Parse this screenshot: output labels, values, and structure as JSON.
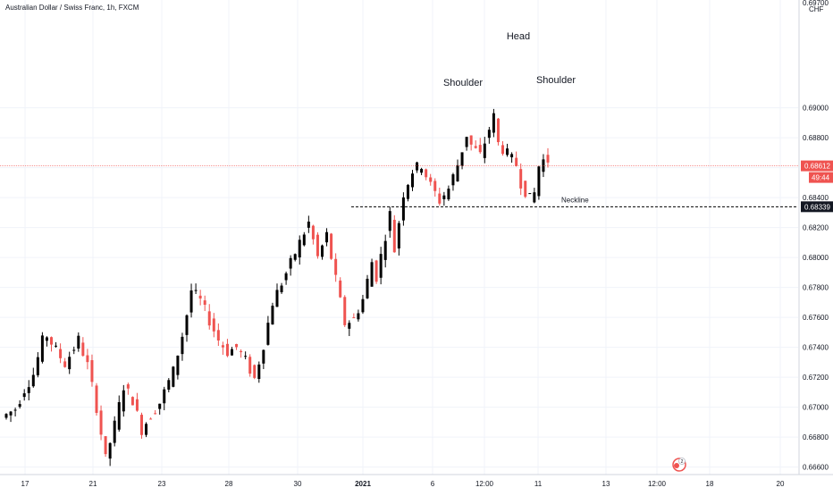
{
  "header": {
    "symbol_title": "Australian Dollar / Swiss Franc, 1h, FXCM"
  },
  "chart_data": {
    "type": "candlestick",
    "title": "Australian Dollar / Swiss Franc, 1h, FXCM",
    "currency_label": "CHF",
    "ylim": [
      0.6655,
      0.6972
    ],
    "y_ticks": [
      "0.66600",
      "0.66800",
      "0.67000",
      "0.67200",
      "0.67400",
      "0.67600",
      "0.67800",
      "0.68000",
      "0.68200",
      "0.68400",
      "0.68600",
      "0.68800",
      "0.69000"
    ],
    "x_ticks": [
      "17",
      "21",
      "23",
      "28",
      "30",
      "2021",
      "6",
      "12:00",
      "11",
      "13",
      "12:00",
      "18",
      "20"
    ],
    "colors": {
      "up": "#000000",
      "down": "#ef5350",
      "grid": "#f0f3fa",
      "neckline": "#000000",
      "current_price_line": "#ef5350"
    },
    "current_price": {
      "value": 0.68612,
      "label": "0.68612",
      "countdown": "49:44",
      "color": "#ef5350"
    },
    "neckline": {
      "value": 0.68339,
      "label": "0.68339",
      "text": "Neckline"
    },
    "annotations": [
      "Shoulder",
      "Head",
      "Shoulder"
    ],
    "candle_path": [
      [
        0,
        0.6693
      ],
      [
        3,
        0.6699
      ],
      [
        5,
        0.6712
      ],
      [
        7,
        0.6722
      ],
      [
        9,
        0.6744
      ],
      [
        10,
        0.6748
      ],
      [
        12,
        0.6738
      ],
      [
        14,
        0.6729
      ],
      [
        17,
        0.6745
      ],
      [
        19,
        0.6728
      ],
      [
        21,
        0.67
      ],
      [
        23,
        0.6665
      ],
      [
        25,
        0.6688
      ],
      [
        27,
        0.6714
      ],
      [
        29,
        0.6705
      ],
      [
        31,
        0.6685
      ],
      [
        33,
        0.6695
      ],
      [
        35,
        0.6703
      ],
      [
        38,
        0.6724
      ],
      [
        40,
        0.6748
      ],
      [
        41,
        0.6762
      ],
      [
        42,
        0.6778
      ],
      [
        44,
        0.6771
      ],
      [
        46,
        0.6758
      ],
      [
        48,
        0.6745
      ],
      [
        50,
        0.6737
      ],
      [
        52,
        0.674
      ],
      [
        54,
        0.6731
      ],
      [
        56,
        0.6719
      ],
      [
        58,
        0.6742
      ],
      [
        60,
        0.677
      ],
      [
        62,
        0.6783
      ],
      [
        64,
        0.6796
      ],
      [
        66,
        0.681
      ],
      [
        68,
        0.6823
      ],
      [
        70,
        0.68
      ],
      [
        72,
        0.6815
      ],
      [
        74,
        0.6785
      ],
      [
        76,
        0.6756
      ],
      [
        78,
        0.6759
      ],
      [
        80,
        0.6772
      ],
      [
        82,
        0.6797
      ],
      [
        83,
        0.6787
      ],
      [
        85,
        0.6815
      ],
      [
        86,
        0.6829
      ],
      [
        87,
        0.6805
      ],
      [
        89,
        0.6843
      ],
      [
        91,
        0.6858
      ],
      [
        93,
        0.6862
      ],
      [
        95,
        0.6848
      ],
      [
        97,
        0.6838
      ],
      [
        99,
        0.6846
      ],
      [
        101,
        0.6862
      ],
      [
        103,
        0.6882
      ],
      [
        104,
        0.6875
      ],
      [
        106,
        0.6868
      ],
      [
        108,
        0.6886
      ],
      [
        109,
        0.6894
      ],
      [
        110,
        0.6876
      ],
      [
        112,
        0.6869
      ],
      [
        114,
        0.6862
      ],
      [
        115,
        0.685
      ],
      [
        117,
        0.6839
      ],
      [
        118,
        0.6843
      ],
      [
        119,
        0.6861
      ],
      [
        120,
        0.6865
      ]
    ]
  }
}
